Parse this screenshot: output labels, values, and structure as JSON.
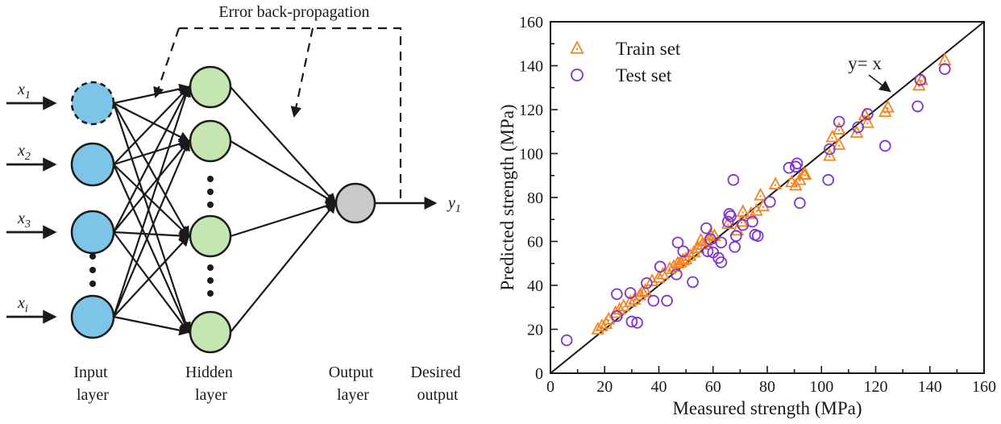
{
  "figure": {
    "diagram": {
      "title": "Error back-propagation",
      "inputs": [
        {
          "base": "x",
          "sub": "1"
        },
        {
          "base": "x",
          "sub": "2"
        },
        {
          "base": "x",
          "sub": "3"
        },
        {
          "base": "x",
          "sub": "i"
        }
      ],
      "output_label": {
        "base": "y",
        "sub": "1"
      },
      "layer_labels": [
        {
          "line1": "Input",
          "line2": "layer"
        },
        {
          "line1": "Hidden",
          "line2": "layer"
        },
        {
          "line1": "Output",
          "line2": "layer"
        },
        {
          "line1": "Desired",
          "line2": "output"
        }
      ],
      "colors": {
        "input_node": "#7CC4E8",
        "hidden_node": "#C6E6B1",
        "output_node": "#C9C9C9",
        "line": "#1A1A1A"
      }
    }
  },
  "chart_data": {
    "type": "scatter",
    "title": "",
    "xlabel": "Measured strength (MPa)",
    "ylabel": "Predicted strength (MPa)",
    "xlim": [
      0,
      160
    ],
    "ylim": [
      0,
      160
    ],
    "x_ticks": [
      0,
      20,
      40,
      60,
      80,
      100,
      120,
      140,
      160
    ],
    "y_ticks": [
      0,
      20,
      40,
      60,
      80,
      100,
      120,
      140,
      160
    ],
    "minor_tick_step": 10,
    "grid": false,
    "legend_position": "top-left-inside",
    "reference_line": {
      "label": "y= x",
      "from": [
        0,
        0
      ],
      "to": [
        160,
        160
      ]
    },
    "annotation": {
      "text": "y= x"
    },
    "series": [
      {
        "name": "Train set",
        "marker": "triangle-open-dot",
        "color": "#F5831F",
        "points": [
          [
            17.5,
            20
          ],
          [
            19,
            21.5
          ],
          [
            20.5,
            22.5
          ],
          [
            21.5,
            24.5
          ],
          [
            24,
            27.5
          ],
          [
            25.5,
            29
          ],
          [
            27,
            30.5
          ],
          [
            29.5,
            32.5
          ],
          [
            31,
            33.5
          ],
          [
            33,
            35.5
          ],
          [
            34,
            37
          ],
          [
            35,
            37.5
          ],
          [
            37.5,
            42
          ],
          [
            40,
            43.5
          ],
          [
            41.5,
            45
          ],
          [
            44,
            47.5
          ],
          [
            45.5,
            48.5
          ],
          [
            47,
            50
          ],
          [
            48,
            50.5
          ],
          [
            49,
            51.5
          ],
          [
            50,
            52
          ],
          [
            51.5,
            53.5
          ],
          [
            53,
            55
          ],
          [
            54.5,
            57
          ],
          [
            55.5,
            60.5
          ],
          [
            56,
            58.5
          ],
          [
            57.5,
            60
          ],
          [
            59,
            61
          ],
          [
            59,
            63
          ],
          [
            60.5,
            62.5
          ],
          [
            65.5,
            68
          ],
          [
            69,
            65
          ],
          [
            70.5,
            69
          ],
          [
            71,
            73.5
          ],
          [
            74,
            72.5
          ],
          [
            76,
            74
          ],
          [
            77.5,
            81
          ],
          [
            78.5,
            76
          ],
          [
            83,
            86
          ],
          [
            89,
            87
          ],
          [
            90.5,
            85.5
          ],
          [
            92,
            88
          ],
          [
            93.5,
            90.5
          ],
          [
            94,
            90.5
          ],
          [
            103,
            99
          ],
          [
            104,
            107.5
          ],
          [
            106.5,
            104
          ],
          [
            106.5,
            111
          ],
          [
            113,
            109.5
          ],
          [
            116,
            117.5
          ],
          [
            117,
            114
          ],
          [
            123.5,
            119
          ],
          [
            124.5,
            121
          ],
          [
            136,
            131
          ],
          [
            137,
            133.5
          ],
          [
            145.5,
            142.5
          ]
        ]
      },
      {
        "name": "Test set",
        "marker": "circle-open",
        "color": "#7D33D4",
        "points": [
          [
            6,
            15
          ],
          [
            24.5,
            26
          ],
          [
            24.5,
            36
          ],
          [
            29.5,
            36.5
          ],
          [
            30,
            23.5
          ],
          [
            32,
            23
          ],
          [
            35.5,
            41
          ],
          [
            38,
            33
          ],
          [
            43,
            33
          ],
          [
            40.5,
            48.5
          ],
          [
            46.5,
            45
          ],
          [
            47,
            59.5
          ],
          [
            49,
            55.5
          ],
          [
            52.5,
            41.5
          ],
          [
            57.5,
            66
          ],
          [
            58,
            55.5
          ],
          [
            59,
            61
          ],
          [
            60,
            55
          ],
          [
            62,
            52.5
          ],
          [
            63,
            50.5
          ],
          [
            63,
            59.5
          ],
          [
            65.5,
            69
          ],
          [
            66,
            72.5
          ],
          [
            66.5,
            71.5
          ],
          [
            67.5,
            88
          ],
          [
            68,
            57.5
          ],
          [
            68.5,
            62.5
          ],
          [
            71,
            67.5
          ],
          [
            74.5,
            69
          ],
          [
            75.5,
            63
          ],
          [
            76.5,
            62.5
          ],
          [
            81,
            78
          ],
          [
            88,
            93.5
          ],
          [
            90.5,
            94
          ],
          [
            91,
            95.5
          ],
          [
            92,
            77.5
          ],
          [
            102.5,
            88
          ],
          [
            103,
            102
          ],
          [
            106.5,
            114.5
          ],
          [
            113.5,
            112
          ],
          [
            117,
            118
          ],
          [
            123.5,
            103.5
          ],
          [
            135.5,
            121.5
          ],
          [
            136.5,
            133.5
          ],
          [
            145.5,
            138.5
          ]
        ]
      }
    ]
  }
}
